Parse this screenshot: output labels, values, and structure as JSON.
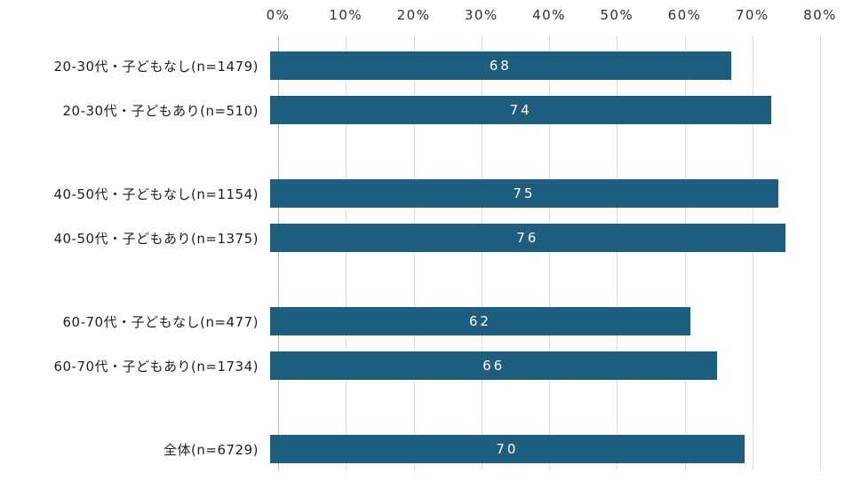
{
  "chart_data": {
    "type": "bar",
    "orientation": "horizontal",
    "title": "",
    "xlabel": "",
    "ylabel": "",
    "xlim": [
      0,
      80
    ],
    "x_ticks": [
      "0%",
      "10%",
      "20%",
      "30%",
      "40%",
      "50%",
      "60%",
      "70%",
      "80%"
    ],
    "grid": true,
    "legend": "none",
    "categories": [
      "20-30代・子どもなし(n=1479)",
      "20-30代・子どもあり(n=510)",
      "40-50代・子どもなし(n=1154)",
      "40-50代・子どもあり(n=1375)",
      "60-70代・子どもなし(n=477)",
      "60-70代・子どもあり(n=1734)",
      "全体(n=6729)"
    ],
    "values": [
      68,
      74,
      75,
      76,
      62,
      66,
      70
    ],
    "group_breaks_after": [
      1,
      3,
      5
    ],
    "colors": {
      "bar": "#1d5d7e",
      "value_label": "#ffffff",
      "category_label": "#1f1f1f",
      "tick_label": "#303030",
      "gridline": "#d9dde1",
      "axis_line": "#b3b9be",
      "background": "#ffffff"
    }
  }
}
